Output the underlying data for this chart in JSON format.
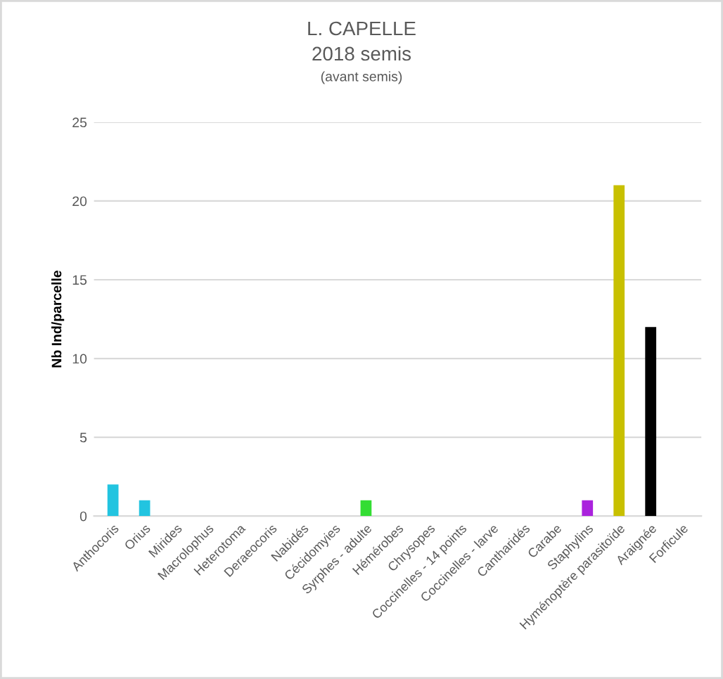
{
  "chart_data": {
    "type": "bar",
    "title": "L. CAPELLE\n2018 semis",
    "subtitle": "(avant semis)",
    "ylabel": "Nb Ind/parcelle",
    "categories": [
      "Anthocoris",
      "Orius",
      "Mirides",
      "Macrolophus",
      "Heterotoma",
      "Deraeocoris",
      "Nabidés",
      "Cécidomyies",
      "Syrphes - adulte",
      "Hémérobes",
      "Chrysopes",
      "Coccinelles - 14 points",
      "Coccinelles - larve",
      "Cantharidés",
      "Carabe",
      "Staphylins",
      "Hyménoptère parasitoïde",
      "Araignée",
      "Forficule"
    ],
    "values": [
      2,
      1,
      0,
      0,
      0,
      0,
      0,
      0,
      1,
      0,
      0,
      0,
      0,
      0,
      0,
      1,
      21,
      12,
      0
    ],
    "colors": [
      "#22c4e0",
      "#22c4e0",
      "#22c4e0",
      "#22c4e0",
      "#22c4e0",
      "#22c4e0",
      "#22c4e0",
      "#22c4e0",
      "#33dd33",
      "#33dd33",
      "#33dd33",
      "#33dd33",
      "#33dd33",
      "#33dd33",
      "#33dd33",
      "#aa22dd",
      "#c8c000",
      "#000000",
      "#000000"
    ],
    "ylim": [
      0,
      25
    ],
    "yticks": [
      0,
      5,
      10,
      15,
      20,
      25
    ],
    "grid": "y"
  }
}
